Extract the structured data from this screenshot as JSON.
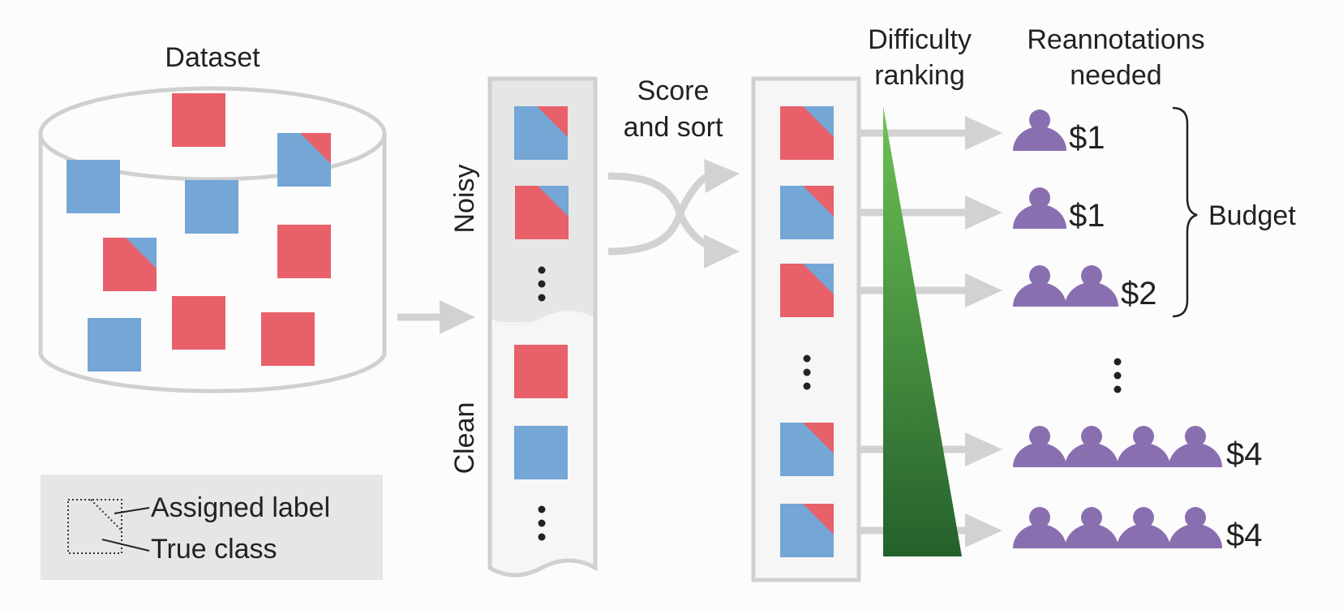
{
  "labels": {
    "dataset": "Dataset",
    "noisy": "Noisy",
    "clean": "Clean",
    "score_and_sort_1": "Score",
    "score_and_sort_2": "and sort",
    "difficulty_1": "Difficulty",
    "difficulty_2": "ranking",
    "reannotations_1": "Reannotations",
    "reannotations_2": "needed",
    "budget": "Budget"
  },
  "legend": {
    "assigned": "Assigned label",
    "true_class": "True class"
  },
  "costs": [
    {
      "annotators": 1,
      "label": "$1"
    },
    {
      "annotators": 1,
      "label": "$1"
    },
    {
      "annotators": 2,
      "label": "$2"
    },
    {
      "annotators": 4,
      "label": "$4"
    },
    {
      "annotators": 4,
      "label": "$4"
    }
  ],
  "colors": {
    "red": "#e8606a",
    "blue": "#74a6d6",
    "purple": "#8a6fb0",
    "gray": "#d2d2d2",
    "panel": "#e6e6e6",
    "green_top": "#6cc254",
    "green_bottom": "#24602c"
  }
}
